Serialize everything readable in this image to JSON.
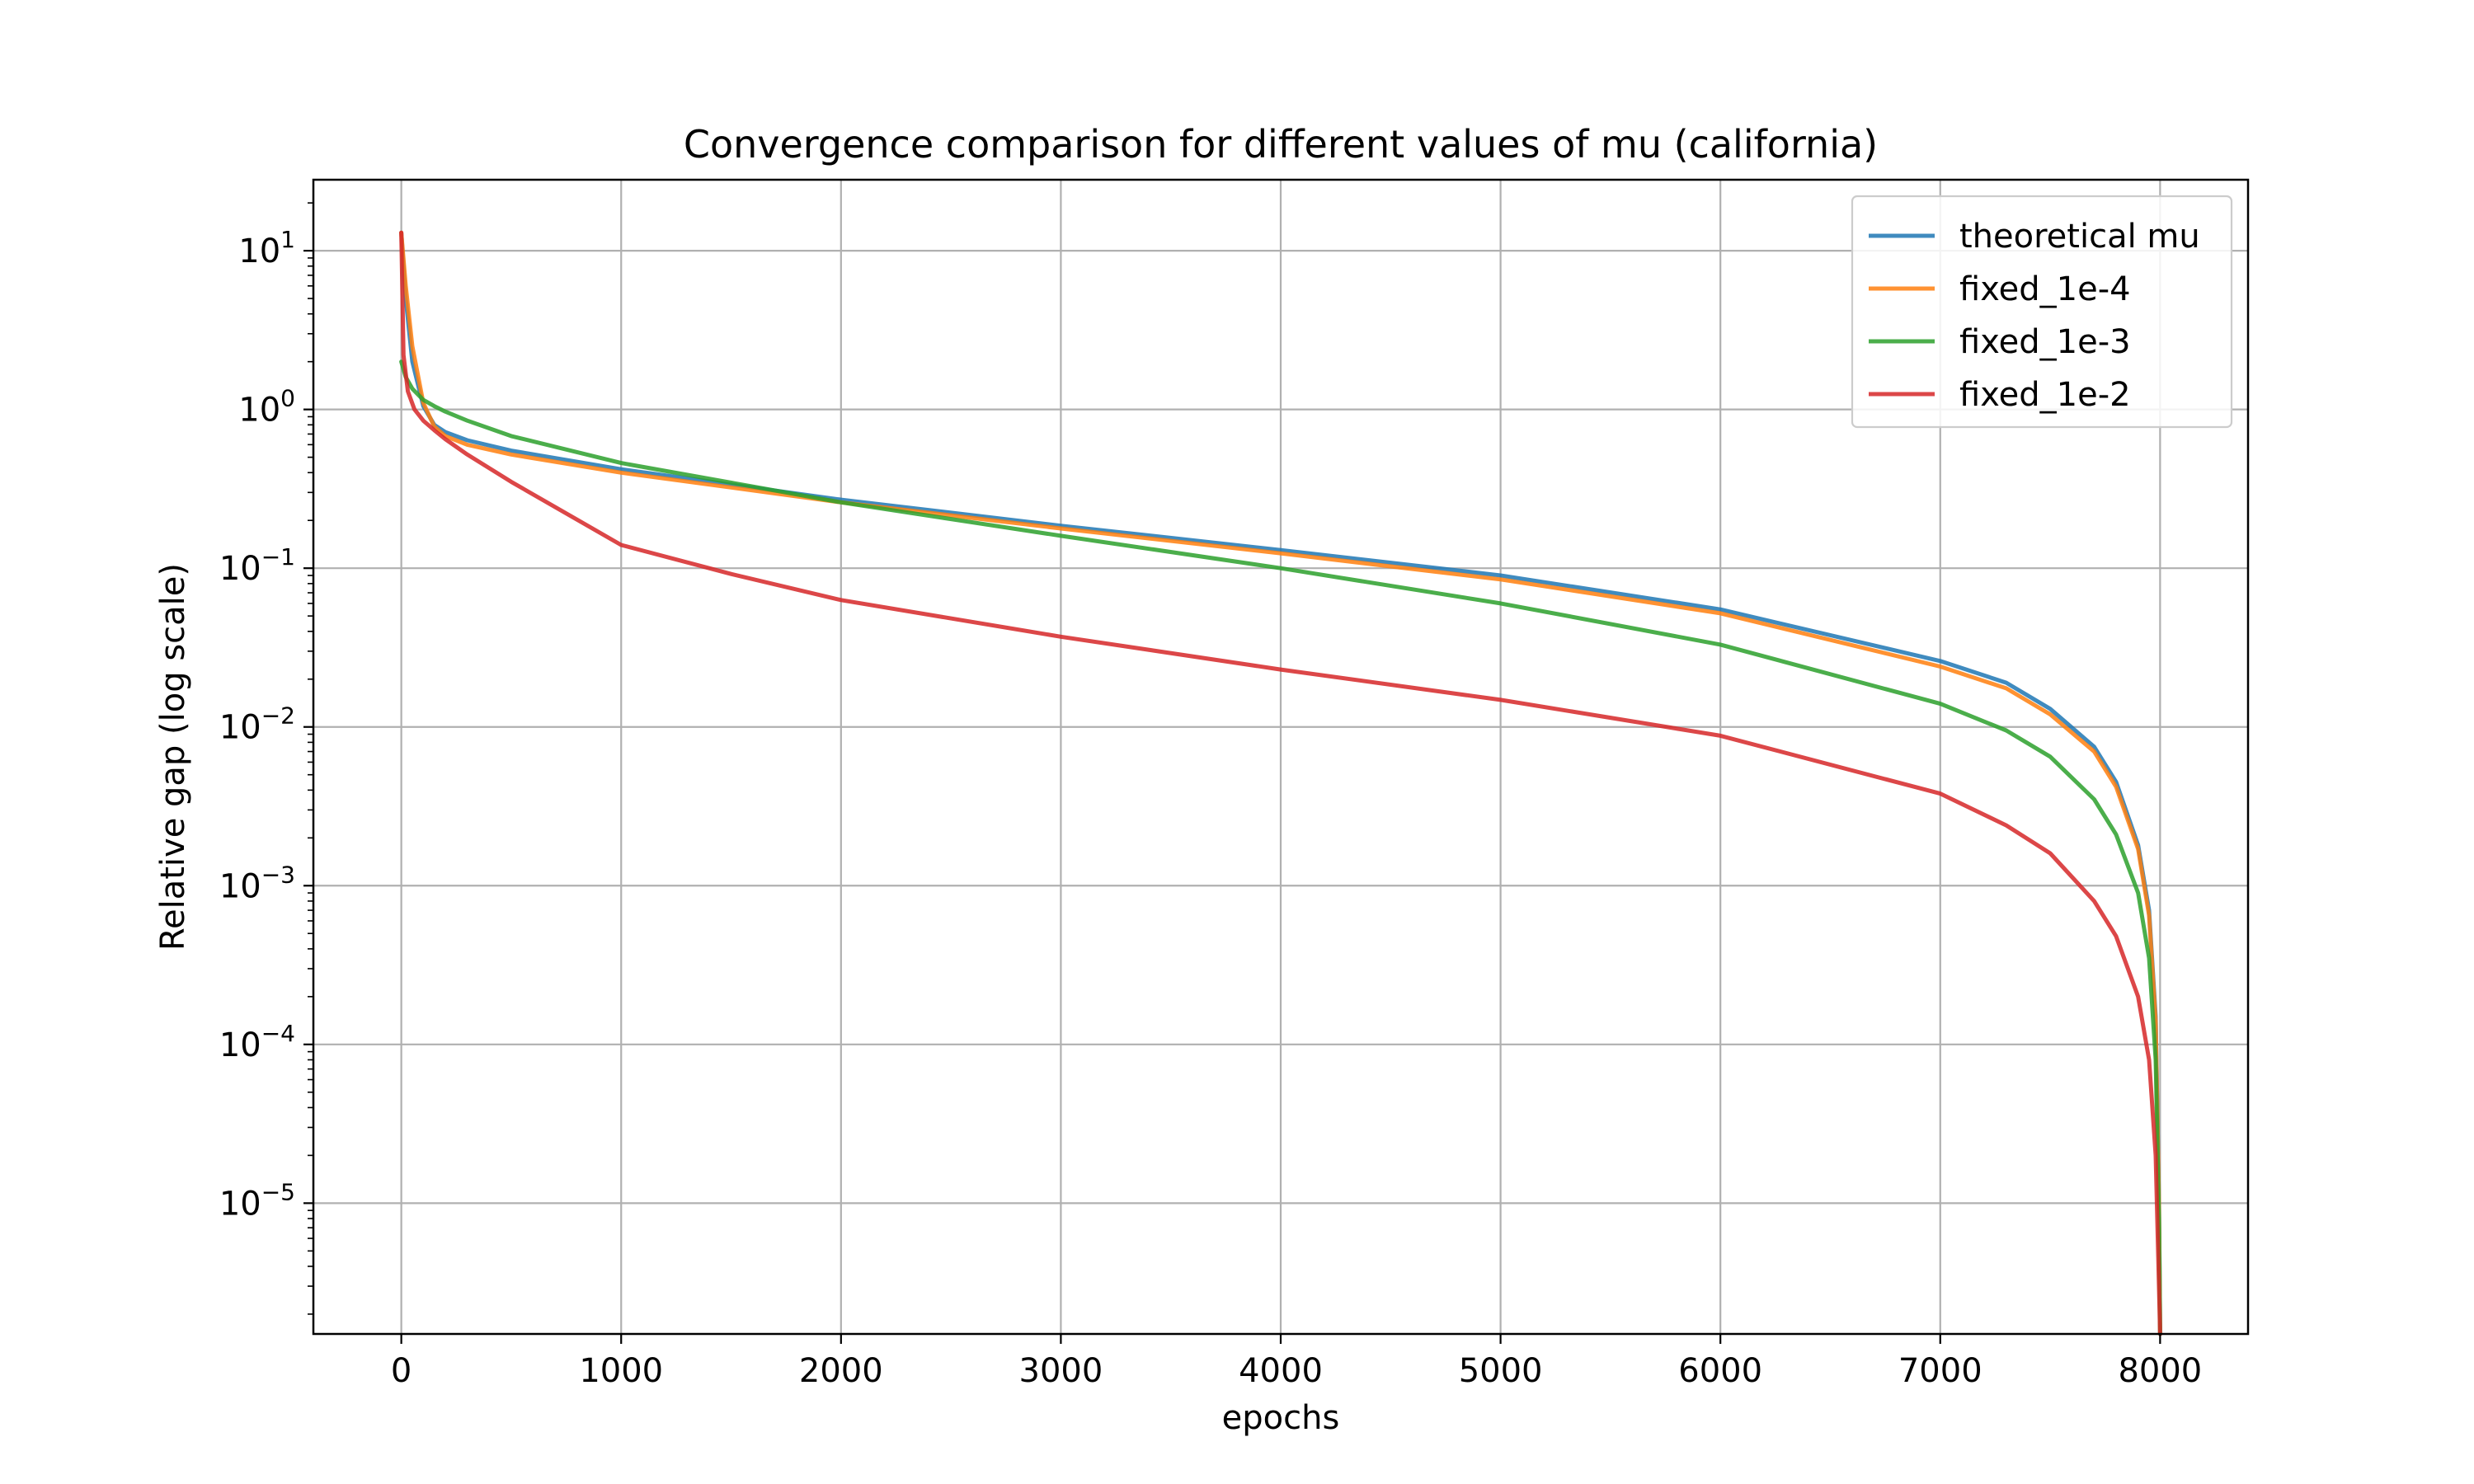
{
  "chart_data": {
    "type": "line",
    "title": "Convergence comparison for different values of mu (california)",
    "xlabel": "epochs",
    "ylabel": "Relative gap (log scale)",
    "yscale": "log",
    "xlim": [
      -400,
      8400
    ],
    "ylim": [
      1.5e-06,
      28
    ],
    "xticks": [
      0,
      1000,
      2000,
      3000,
      4000,
      5000,
      6000,
      7000,
      8000
    ],
    "xtick_labels": [
      "0",
      "1000",
      "2000",
      "3000",
      "4000",
      "5000",
      "6000",
      "7000",
      "8000"
    ],
    "yticks": [
      {
        "value": 10,
        "base": "10",
        "exp": "1"
      },
      {
        "value": 1,
        "base": "10",
        "exp": "0"
      },
      {
        "value": 0.1,
        "base": "10",
        "exp": "−1"
      },
      {
        "value": 0.01,
        "base": "10",
        "exp": "−2"
      },
      {
        "value": 0.001,
        "base": "10",
        "exp": "−3"
      },
      {
        "value": 0.0001,
        "base": "10",
        "exp": "−4"
      },
      {
        "value": 1e-05,
        "base": "10",
        "exp": "−5"
      }
    ],
    "grid": true,
    "legend_position": "top-right",
    "series": [
      {
        "name": "theoretical mu",
        "color": "#1f77b4",
        "x": [
          0,
          20,
          50,
          100,
          150,
          200,
          300,
          500,
          1000,
          2000,
          3000,
          4000,
          5000,
          6000,
          7000,
          7300,
          7500,
          7700,
          7800,
          7900,
          7950,
          7980,
          7995,
          8000
        ],
        "y": [
          13,
          5,
          2,
          1.05,
          0.8,
          0.72,
          0.64,
          0.55,
          0.42,
          0.27,
          0.185,
          0.13,
          0.09,
          0.055,
          0.026,
          0.019,
          0.013,
          0.0075,
          0.0045,
          0.0018,
          0.0007,
          0.00015,
          1e-05,
          1.5e-06
        ]
      },
      {
        "name": "fixed_1e-4",
        "color": "#ff7f0e",
        "x": [
          0,
          20,
          50,
          100,
          150,
          200,
          300,
          500,
          1000,
          2000,
          3000,
          4000,
          5000,
          6000,
          7000,
          7300,
          7500,
          7700,
          7800,
          7900,
          7950,
          7980,
          7995,
          8000
        ],
        "y": [
          13,
          6,
          2.5,
          1.1,
          0.78,
          0.68,
          0.6,
          0.52,
          0.4,
          0.26,
          0.178,
          0.124,
          0.085,
          0.052,
          0.024,
          0.0175,
          0.012,
          0.007,
          0.0042,
          0.0017,
          0.00065,
          0.00014,
          1e-05,
          1.5e-06
        ]
      },
      {
        "name": "fixed_1e-3",
        "color": "#2ca02c",
        "x": [
          0,
          20,
          50,
          100,
          150,
          200,
          300,
          500,
          1000,
          2000,
          3000,
          4000,
          5000,
          6000,
          7000,
          7300,
          7500,
          7700,
          7800,
          7900,
          7950,
          7980,
          7995,
          8000
        ],
        "y": [
          2,
          1.6,
          1.35,
          1.15,
          1.05,
          0.97,
          0.85,
          0.68,
          0.46,
          0.26,
          0.16,
          0.1,
          0.06,
          0.033,
          0.014,
          0.0095,
          0.0065,
          0.0035,
          0.0021,
          0.0009,
          0.00035,
          8e-05,
          8e-06,
          1.5e-06
        ]
      },
      {
        "name": "fixed_1e-2",
        "color": "#d62728",
        "x": [
          0,
          10,
          30,
          60,
          100,
          150,
          200,
          300,
          500,
          1000,
          1500,
          2000,
          3000,
          4000,
          5000,
          6000,
          7000,
          7300,
          7500,
          7700,
          7800,
          7900,
          7950,
          7980,
          7995,
          8000
        ],
        "y": [
          13,
          2.2,
          1.3,
          1.0,
          0.85,
          0.74,
          0.65,
          0.52,
          0.35,
          0.14,
          0.092,
          0.063,
          0.037,
          0.023,
          0.0148,
          0.0088,
          0.0038,
          0.0024,
          0.0016,
          0.0008,
          0.00048,
          0.0002,
          8e-05,
          2e-05,
          3e-06,
          1.5e-06
        ]
      }
    ]
  }
}
